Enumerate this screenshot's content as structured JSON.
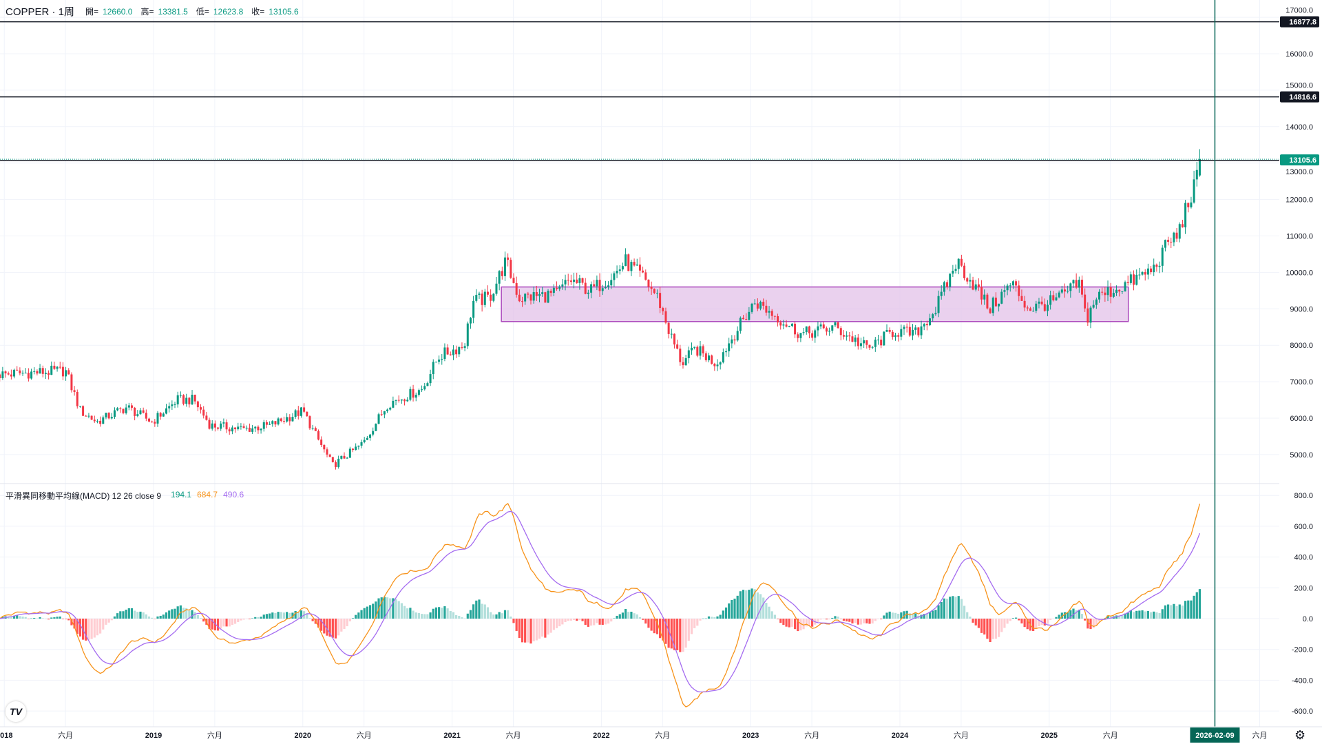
{
  "header": {
    "symbol": "COPPER · 1周",
    "open_label": "開=",
    "open": "12660.0",
    "high_label": "高=",
    "high": "13381.5",
    "low_label": "低=",
    "low": "12623.8",
    "close_label": "收=",
    "close": "13105.6"
  },
  "macd": {
    "title": "平滑異同移動平均線(MACD) 12 26 close 9",
    "hist": "194.1",
    "macd": "684.7",
    "signal": "490.6"
  },
  "colors": {
    "up": "#089981",
    "down": "#f23645",
    "macd_line": "#f7931a",
    "signal_line": "#a46bf0",
    "box_fill": "#e1bee7",
    "box_border": "#ab47bc",
    "cursor": "#056656"
  },
  "price_axis": {
    "ticks": [
      5000,
      6000,
      7000,
      8000,
      9000,
      10000,
      11000,
      12000,
      13000,
      14000,
      15000,
      16000,
      17000
    ]
  },
  "macd_axis": {
    "ticks": [
      -600,
      -400,
      -200,
      0,
      200,
      400,
      600,
      800
    ]
  },
  "price_levels": [
    {
      "value": 16877.8,
      "label": "16877.8",
      "style": "level"
    },
    {
      "value": 14816.6,
      "label": "14816.6",
      "style": "level"
    },
    {
      "value": 13105.6,
      "label": "13105.6",
      "style": "current"
    }
  ],
  "time_axis": [
    {
      "t": 2018.0,
      "label": "2018",
      "bold": true
    },
    {
      "t": 2018.41,
      "label": "六月"
    },
    {
      "t": 2019.0,
      "label": "2019",
      "bold": true
    },
    {
      "t": 2019.41,
      "label": "六月"
    },
    {
      "t": 2020.0,
      "label": "2020",
      "bold": true
    },
    {
      "t": 2020.41,
      "label": "六月"
    },
    {
      "t": 2021.0,
      "label": "2021",
      "bold": true
    },
    {
      "t": 2021.41,
      "label": "六月"
    },
    {
      "t": 2022.0,
      "label": "2022",
      "bold": true
    },
    {
      "t": 2022.41,
      "label": "六月"
    },
    {
      "t": 2023.0,
      "label": "2023",
      "bold": true
    },
    {
      "t": 2023.41,
      "label": "六月"
    },
    {
      "t": 2024.0,
      "label": "2024",
      "bold": true
    },
    {
      "t": 2024.41,
      "label": "六月"
    },
    {
      "t": 2025.0,
      "label": "2025",
      "bold": true
    },
    {
      "t": 2025.41,
      "label": "六月"
    },
    {
      "t": 2026.41,
      "label": "六月"
    }
  ],
  "cursor": {
    "t": 2026.11,
    "label": "2026-02-09"
  },
  "chart_data": {
    "type": "candlestick",
    "title": "COPPER · 1周",
    "range_box": {
      "t0": 2021.33,
      "t1": 2025.53,
      "p_high": 9600,
      "p_low": 8650
    },
    "close_anchors": [
      [
        2017.97,
        7200
      ],
      [
        2018.41,
        7300
      ],
      [
        2018.51,
        6200
      ],
      [
        2018.62,
        5900
      ],
      [
        2018.82,
        6300
      ],
      [
        2018.99,
        5900
      ],
      [
        2019.16,
        6500
      ],
      [
        2019.27,
        6500
      ],
      [
        2019.38,
        5800
      ],
      [
        2019.61,
        5700
      ],
      [
        2019.78,
        5800
      ],
      [
        2020.0,
        6200
      ],
      [
        2020.09,
        5500
      ],
      [
        2020.2,
        4700
      ],
      [
        2020.4,
        5300
      ],
      [
        2020.57,
        6400
      ],
      [
        2020.8,
        6800
      ],
      [
        2020.91,
        7700
      ],
      [
        2021.08,
        8000
      ],
      [
        2021.14,
        9200
      ],
      [
        2021.25,
        9300
      ],
      [
        2021.36,
        10300
      ],
      [
        2021.45,
        9300
      ],
      [
        2021.7,
        9400
      ],
      [
        2021.79,
        9800
      ],
      [
        2021.93,
        9500
      ],
      [
        2022.1,
        10000
      ],
      [
        2022.16,
        10300
      ],
      [
        2022.29,
        9800
      ],
      [
        2022.38,
        9300
      ],
      [
        2022.46,
        8300
      ],
      [
        2022.54,
        7500
      ],
      [
        2022.63,
        7900
      ],
      [
        2022.77,
        7500
      ],
      [
        2022.89,
        8300
      ],
      [
        2023.03,
        9200
      ],
      [
        2023.17,
        8800
      ],
      [
        2023.34,
        8300
      ],
      [
        2023.56,
        8500
      ],
      [
        2023.79,
        7900
      ],
      [
        2023.96,
        8400
      ],
      [
        2024.1,
        8300
      ],
      [
        2024.24,
        9000
      ],
      [
        2024.38,
        10300
      ],
      [
        2024.49,
        9700
      ],
      [
        2024.6,
        9000
      ],
      [
        2024.75,
        9700
      ],
      [
        2024.86,
        9000
      ],
      [
        2025.03,
        9200
      ],
      [
        2025.2,
        9700
      ],
      [
        2025.25,
        8700
      ],
      [
        2025.31,
        9300
      ],
      [
        2025.53,
        9700
      ],
      [
        2025.7,
        10100
      ],
      [
        2025.81,
        10900
      ],
      [
        2025.86,
        11000
      ],
      [
        2025.92,
        11800
      ],
      [
        2025.97,
        12300
      ],
      [
        2026.02,
        13105.6
      ]
    ],
    "last_candle": {
      "open": 12660.0,
      "high": 13381.5,
      "low": 12623.8,
      "close": 13105.6
    },
    "indicator": {
      "name": "MACD",
      "fast": 12,
      "slow": 26,
      "signal": 9,
      "source": "close"
    }
  }
}
